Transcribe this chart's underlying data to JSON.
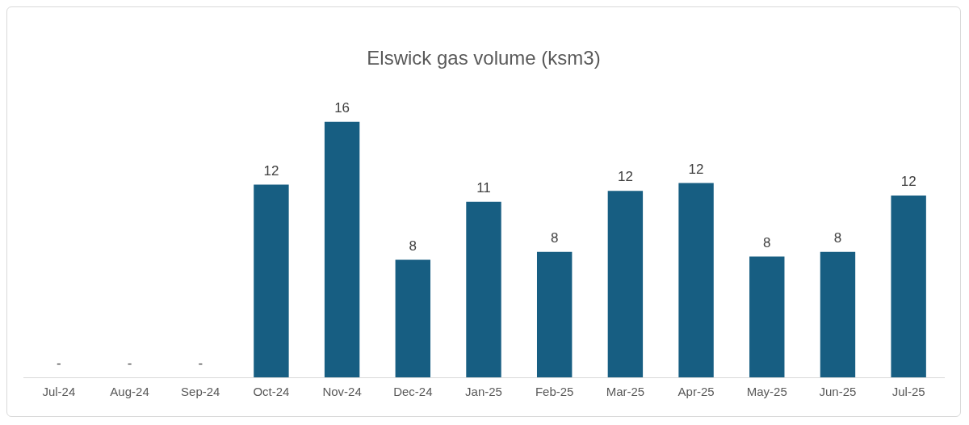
{
  "chart_data": {
    "type": "bar",
    "title": "Elswick gas volume (ksm3)",
    "categories": [
      "Jul-24",
      "Aug-24",
      "Sep-24",
      "Oct-24",
      "Nov-24",
      "Dec-24",
      "Jan-25",
      "Feb-25",
      "Mar-25",
      "Apr-25",
      "May-25",
      "Jun-25",
      "Jul-25"
    ],
    "values": [
      0,
      0,
      0,
      12.3,
      16.3,
      7.5,
      11.2,
      8.0,
      11.9,
      12.4,
      7.7,
      8.0,
      11.6
    ],
    "value_labels": [
      "-",
      "-",
      "-",
      "12",
      "16",
      "8",
      "11",
      "8",
      "12",
      "12",
      "8",
      "8",
      "12"
    ],
    "color": "#175e82",
    "grid": false,
    "legend": false
  }
}
